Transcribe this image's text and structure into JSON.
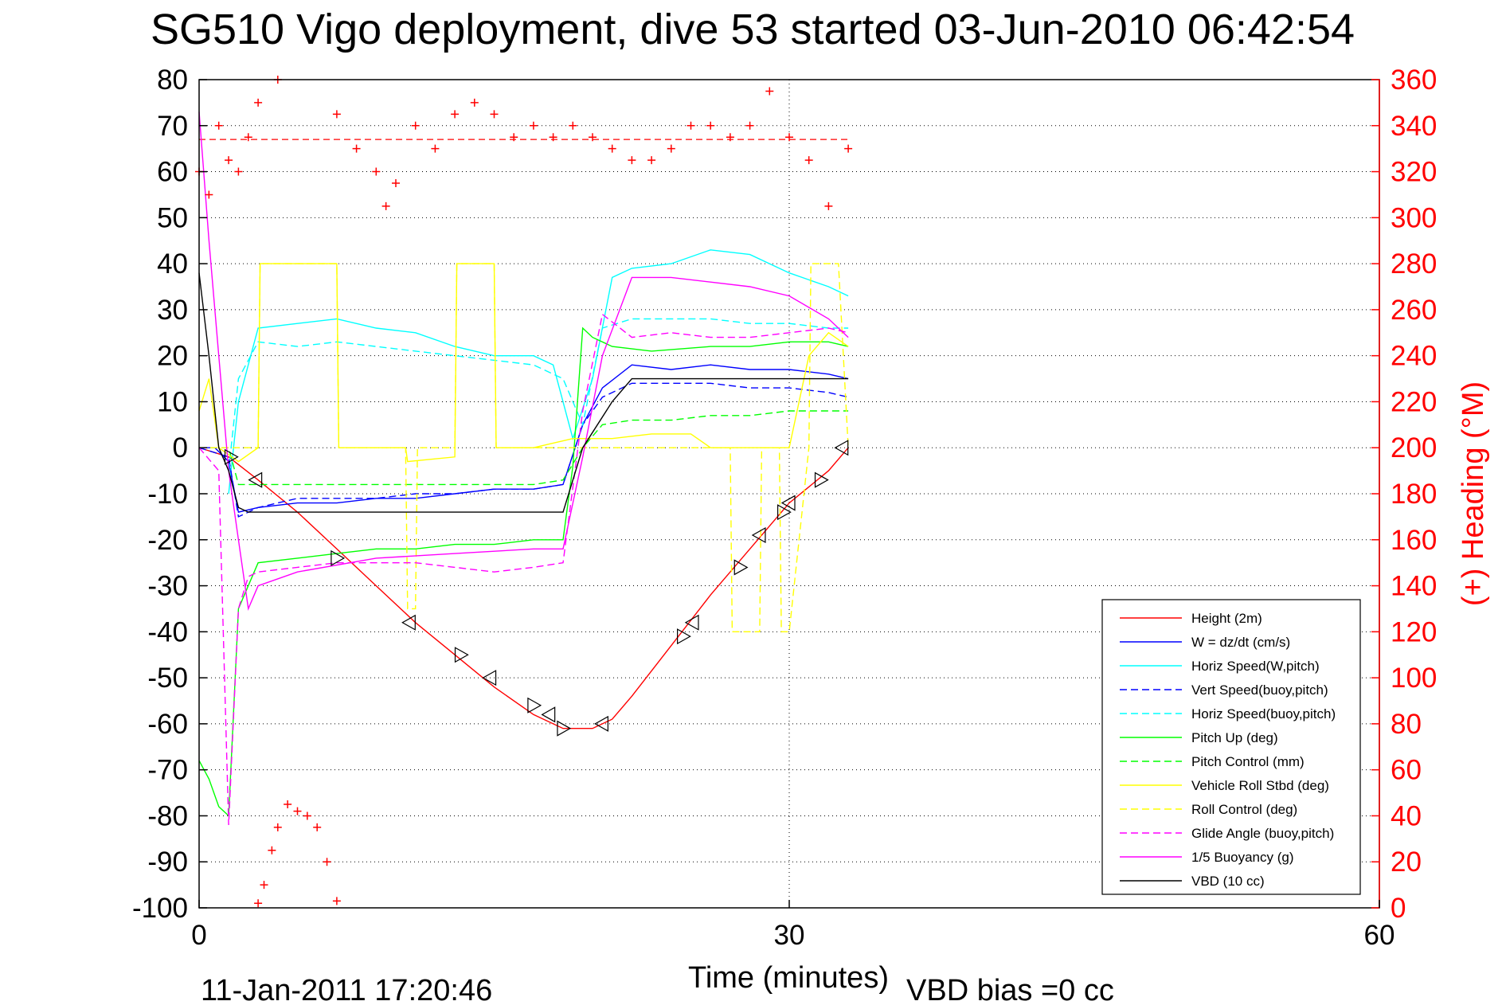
{
  "figure": {
    "title": "SG510 Vigo deployment, dive 53 started 03-Jun-2010 06:42:54",
    "timestamp": "11-Jan-2011 17:20:46",
    "vbd_bias": "VBD bias =0 cc"
  },
  "chart_data": {
    "type": "line",
    "title": "SG510 Vigo deployment, dive 53 started 03-Jun-2010 06:42:54",
    "xlabel": "Time (minutes)",
    "ylabel": "",
    "ylabel_right": "(+) Heading (°M)",
    "xlim": [
      0,
      60
    ],
    "ylim": [
      -100,
      80
    ],
    "ylim_right": [
      0,
      360
    ],
    "x_ticks": [
      "0",
      "30",
      "60"
    ],
    "y_ticks": [
      "80",
      "70",
      "60",
      "50",
      "40",
      "30",
      "20",
      "10",
      "0",
      "-10",
      "-20",
      "-30",
      "-40",
      "-50",
      "-60",
      "-70",
      "-80",
      "-90",
      "-100"
    ],
    "y_ticks_right": [
      "360",
      "340",
      "320",
      "300",
      "280",
      "260",
      "240",
      "220",
      "200",
      "180",
      "160",
      "140",
      "120",
      "100",
      "80",
      "60",
      "40",
      "20",
      "0"
    ],
    "grid": true,
    "legend_position": "bottom-right",
    "colors": {
      "height": "#ff0000",
      "w": "#0000ff",
      "horiz_w": "#00ffff",
      "pitch": "#00ff00",
      "roll": "#ffff00",
      "glide": "#ff00ff",
      "vbd": "#000000",
      "heading": "#ff0000"
    },
    "series": [
      {
        "name": "Height (2m)",
        "color": "#ff0000",
        "style": "solid",
        "x": [
          0,
          1.5,
          3,
          5,
          7,
          9,
          11,
          13,
          15,
          17,
          18.5,
          20,
          21,
          22,
          24,
          26,
          28,
          30,
          32,
          33
        ],
        "y": [
          0,
          -2,
          -7,
          -14,
          -22,
          -30,
          -38,
          -45,
          -52,
          -58,
          -61,
          -61,
          -59,
          -54,
          -43,
          -32,
          -22,
          -12,
          -5,
          0
        ]
      },
      {
        "name": "W = dz/dt (cm/s)",
        "color": "#0000ff",
        "style": "solid",
        "x": [
          0,
          0.8,
          1.5,
          2,
          3,
          5,
          7,
          9,
          11,
          13,
          15,
          17,
          18.5,
          19.5,
          20.5,
          22,
          24,
          26,
          28,
          30,
          32,
          33
        ],
        "y": [
          0,
          0,
          -3,
          -14,
          -13,
          -12,
          -12,
          -11,
          -11,
          -10,
          -9,
          -9,
          -8,
          5,
          13,
          18,
          17,
          18,
          17,
          17,
          16,
          15
        ]
      },
      {
        "name": "Horiz Speed(W,pitch)",
        "color": "#00ffff",
        "style": "solid",
        "x": [
          1.5,
          2,
          3,
          5,
          7,
          9,
          11,
          13,
          15,
          17,
          18,
          19,
          20,
          21,
          22,
          24,
          26,
          28,
          30,
          32,
          33
        ],
        "y": [
          -10,
          10,
          26,
          27,
          28,
          26,
          25,
          22,
          20,
          20,
          18,
          2,
          15,
          37,
          39,
          40,
          43,
          42,
          38,
          35,
          33
        ]
      },
      {
        "name": "Vert Speed(buoy,pitch)",
        "color": "#0000ff",
        "style": "dash",
        "x": [
          0,
          1.5,
          2,
          3,
          5,
          7,
          9,
          11,
          13,
          15,
          17,
          18.5,
          19.5,
          20.5,
          22,
          24,
          26,
          28,
          30,
          32,
          33
        ],
        "y": [
          0,
          -2,
          -15,
          -13,
          -11,
          -11,
          -11,
          -10,
          -10,
          -9,
          -9,
          -8,
          5,
          11,
          14,
          14,
          14,
          13,
          13,
          12,
          11
        ]
      },
      {
        "name": "Horiz Speed(buoy,pitch)",
        "color": "#00ffff",
        "style": "dash",
        "x": [
          1.5,
          2,
          3,
          5,
          7,
          9,
          11,
          13,
          15,
          17,
          18.5,
          19.5,
          20.5,
          22,
          24,
          26,
          28,
          30,
          32,
          33
        ],
        "y": [
          -5,
          15,
          23,
          22,
          23,
          22,
          21,
          20,
          19,
          18,
          15,
          5,
          26,
          28,
          28,
          28,
          27,
          27,
          26,
          26
        ]
      },
      {
        "name": "Pitch Up (deg)",
        "color": "#00ff00",
        "style": "solid",
        "x": [
          0,
          0.5,
          1,
          1.5,
          2,
          3,
          5,
          7,
          9,
          11,
          13,
          15,
          17,
          18.5,
          19,
          19.5,
          20,
          21,
          23,
          26,
          28,
          30,
          32,
          33
        ],
        "y": [
          -68,
          -72,
          -78,
          -80,
          -35,
          -25,
          -24,
          -23,
          -22,
          -22,
          -21,
          -21,
          -20,
          -20,
          -4,
          26,
          24,
          22,
          21,
          22,
          22,
          23,
          23,
          22
        ]
      },
      {
        "name": "Pitch Control (mm)",
        "color": "#00ff00",
        "style": "dash",
        "x": [
          0,
          1.5,
          2,
          3,
          5,
          9,
          13,
          17,
          18.5,
          19.5,
          20.5,
          22,
          24,
          26,
          28,
          30,
          32,
          33
        ],
        "y": [
          0,
          0,
          -8,
          -8,
          -8,
          -8,
          -8,
          -8,
          -7,
          0,
          5,
          6,
          6,
          7,
          7,
          8,
          8,
          8
        ]
      },
      {
        "name": "Vehicle Roll Stbd (deg)",
        "color": "#ffff00",
        "style": "solid",
        "x": [
          0,
          0.5,
          1,
          2,
          3,
          3.1,
          7,
          7.1,
          10.5,
          10.6,
          13,
          13.1,
          15,
          15.1,
          17,
          18,
          19,
          21,
          23,
          25,
          26,
          28,
          30,
          31,
          32,
          33
        ],
        "y": [
          8,
          15,
          0,
          -3,
          0,
          40,
          40,
          0,
          0,
          -3,
          -2,
          40,
          40,
          0,
          0,
          1,
          2,
          2,
          3,
          3,
          0,
          0,
          0,
          20,
          25,
          22
        ]
      },
      {
        "name": "Roll Control (deg)",
        "color": "#ffff00",
        "style": "dash",
        "x": [
          0,
          2.5,
          3,
          3.1,
          7,
          7.1,
          10.5,
          10.6,
          11,
          11.1,
          13,
          13.1,
          15,
          15.1,
          17,
          18,
          19,
          21,
          24,
          25,
          26,
          27,
          27.1,
          28.5,
          28.6,
          29.5,
          29.6,
          30,
          31,
          31.1,
          32.5,
          33
        ],
        "y": [
          0,
          0,
          0,
          40,
          40,
          0,
          0,
          -35,
          -35,
          0,
          0,
          40,
          40,
          0,
          0,
          0,
          0,
          0,
          0,
          0,
          0,
          0,
          -40,
          -40,
          0,
          0,
          -40,
          -40,
          0,
          40,
          40,
          0
        ]
      },
      {
        "name": "Glide Angle (buoy,pitch)",
        "color": "#ff00ff",
        "style": "dash",
        "x": [
          0,
          1,
          1.5,
          2,
          2.5,
          3,
          5,
          7,
          9,
          11,
          13,
          15,
          17,
          18.5,
          19.5,
          20.5,
          22,
          24,
          26,
          28,
          30,
          32,
          33
        ],
        "y": [
          0,
          -5,
          -82,
          -35,
          -28,
          -27,
          -26,
          -25,
          -25,
          -25,
          -26,
          -27,
          -26,
          -25,
          8,
          29,
          24,
          25,
          24,
          24,
          25,
          26,
          25
        ]
      },
      {
        "name": "1/5 Buoyancy (g)",
        "color": "#ff00ff",
        "style": "solid",
        "x": [
          0,
          0.5,
          1,
          1.5,
          2,
          2.5,
          3,
          5,
          9,
          13,
          17,
          18.5,
          19.5,
          20.5,
          22,
          24,
          26,
          28,
          30,
          32,
          33
        ],
        "y": [
          73,
          45,
          20,
          -5,
          -20,
          -35,
          -30,
          -27,
          -24,
          -23,
          -22,
          -22,
          -2,
          20,
          37,
          37,
          36,
          35,
          33,
          28,
          24
        ]
      },
      {
        "name": "VBD (10 cc)",
        "color": "#000000",
        "style": "solid",
        "x": [
          0,
          0.5,
          1,
          1.5,
          2,
          2.5,
          3,
          5,
          9,
          13,
          17,
          18.5,
          19.5,
          21,
          22,
          24,
          26,
          28,
          30,
          32,
          33
        ],
        "y": [
          38,
          20,
          0,
          -5,
          -13,
          -14,
          -14,
          -14,
          -14,
          -14,
          -14,
          -14,
          0,
          10,
          15,
          15,
          15,
          15,
          15,
          15,
          15
        ]
      },
      {
        "name": "",
        "color": "#ff0000",
        "style": "plus",
        "axis": "right",
        "x": [
          0,
          0.5,
          1,
          1.5,
          2,
          2.5,
          3,
          4,
          5,
          6,
          7,
          8,
          9,
          9.5,
          10,
          11,
          12,
          13,
          14,
          15,
          16,
          17,
          18,
          19,
          20,
          21,
          22,
          23,
          24,
          25,
          26,
          27,
          28,
          29,
          30,
          31,
          32,
          33
        ],
        "y": [
          320,
          310,
          340,
          325,
          320,
          335,
          350,
          360,
          365,
          370,
          345,
          330,
          320,
          305,
          315,
          340,
          330,
          345,
          350,
          345,
          335,
          340,
          335,
          340,
          335,
          330,
          325,
          325,
          330,
          340,
          340,
          335,
          340,
          355,
          335,
          325,
          305,
          330
        ]
      },
      {
        "name": "",
        "color": "#ff0000",
        "style": "plus",
        "axis": "right",
        "x": [
          3,
          3.3,
          3.7,
          4,
          4.5,
          5,
          5.5,
          6,
          6.5,
          7
        ],
        "y": [
          2,
          10,
          25,
          35,
          45,
          42,
          40,
          35,
          20,
          3
        ]
      }
    ],
    "heading_mean": 334,
    "markers": {
      "x": [
        1.6,
        2.9,
        7,
        10.7,
        13.3,
        14.8,
        17,
        17.8,
        18.5,
        20.5,
        24.6,
        25.1,
        27.5,
        28.5,
        29.7,
        30,
        31.6,
        32.7
      ],
      "y": [
        -2,
        -7,
        -24,
        -38,
        -45,
        -50,
        -56,
        -58,
        -61,
        -60,
        -41,
        -38,
        -26,
        -19,
        -14,
        -12,
        -7,
        0
      ]
    }
  },
  "legend": {
    "items": [
      {
        "label": "Height (2m)",
        "color": "#ff0000",
        "style": "solid"
      },
      {
        "label": "W = dz/dt (cm/s)",
        "color": "#0000ff",
        "style": "solid"
      },
      {
        "label": "Horiz Speed(W,pitch)",
        "color": "#00ffff",
        "style": "solid"
      },
      {
        "label": "Vert Speed(buoy,pitch)",
        "color": "#0000ff",
        "style": "dash"
      },
      {
        "label": "Horiz Speed(buoy,pitch)",
        "color": "#00ffff",
        "style": "dash"
      },
      {
        "label": "Pitch Up (deg)",
        "color": "#00ff00",
        "style": "solid"
      },
      {
        "label": "Pitch Control (mm)",
        "color": "#00ff00",
        "style": "dash"
      },
      {
        "label": "Vehicle Roll Stbd (deg)",
        "color": "#ffff00",
        "style": "solid"
      },
      {
        "label": "Roll Control (deg)",
        "color": "#ffff00",
        "style": "dash"
      },
      {
        "label": "Glide Angle (buoy,pitch)",
        "color": "#ff00ff",
        "style": "dash"
      },
      {
        "label": "1/5 Buoyancy (g)",
        "color": "#ff00ff",
        "style": "solid"
      },
      {
        "label": "VBD (10 cc)",
        "color": "#000000",
        "style": "solid"
      }
    ]
  }
}
